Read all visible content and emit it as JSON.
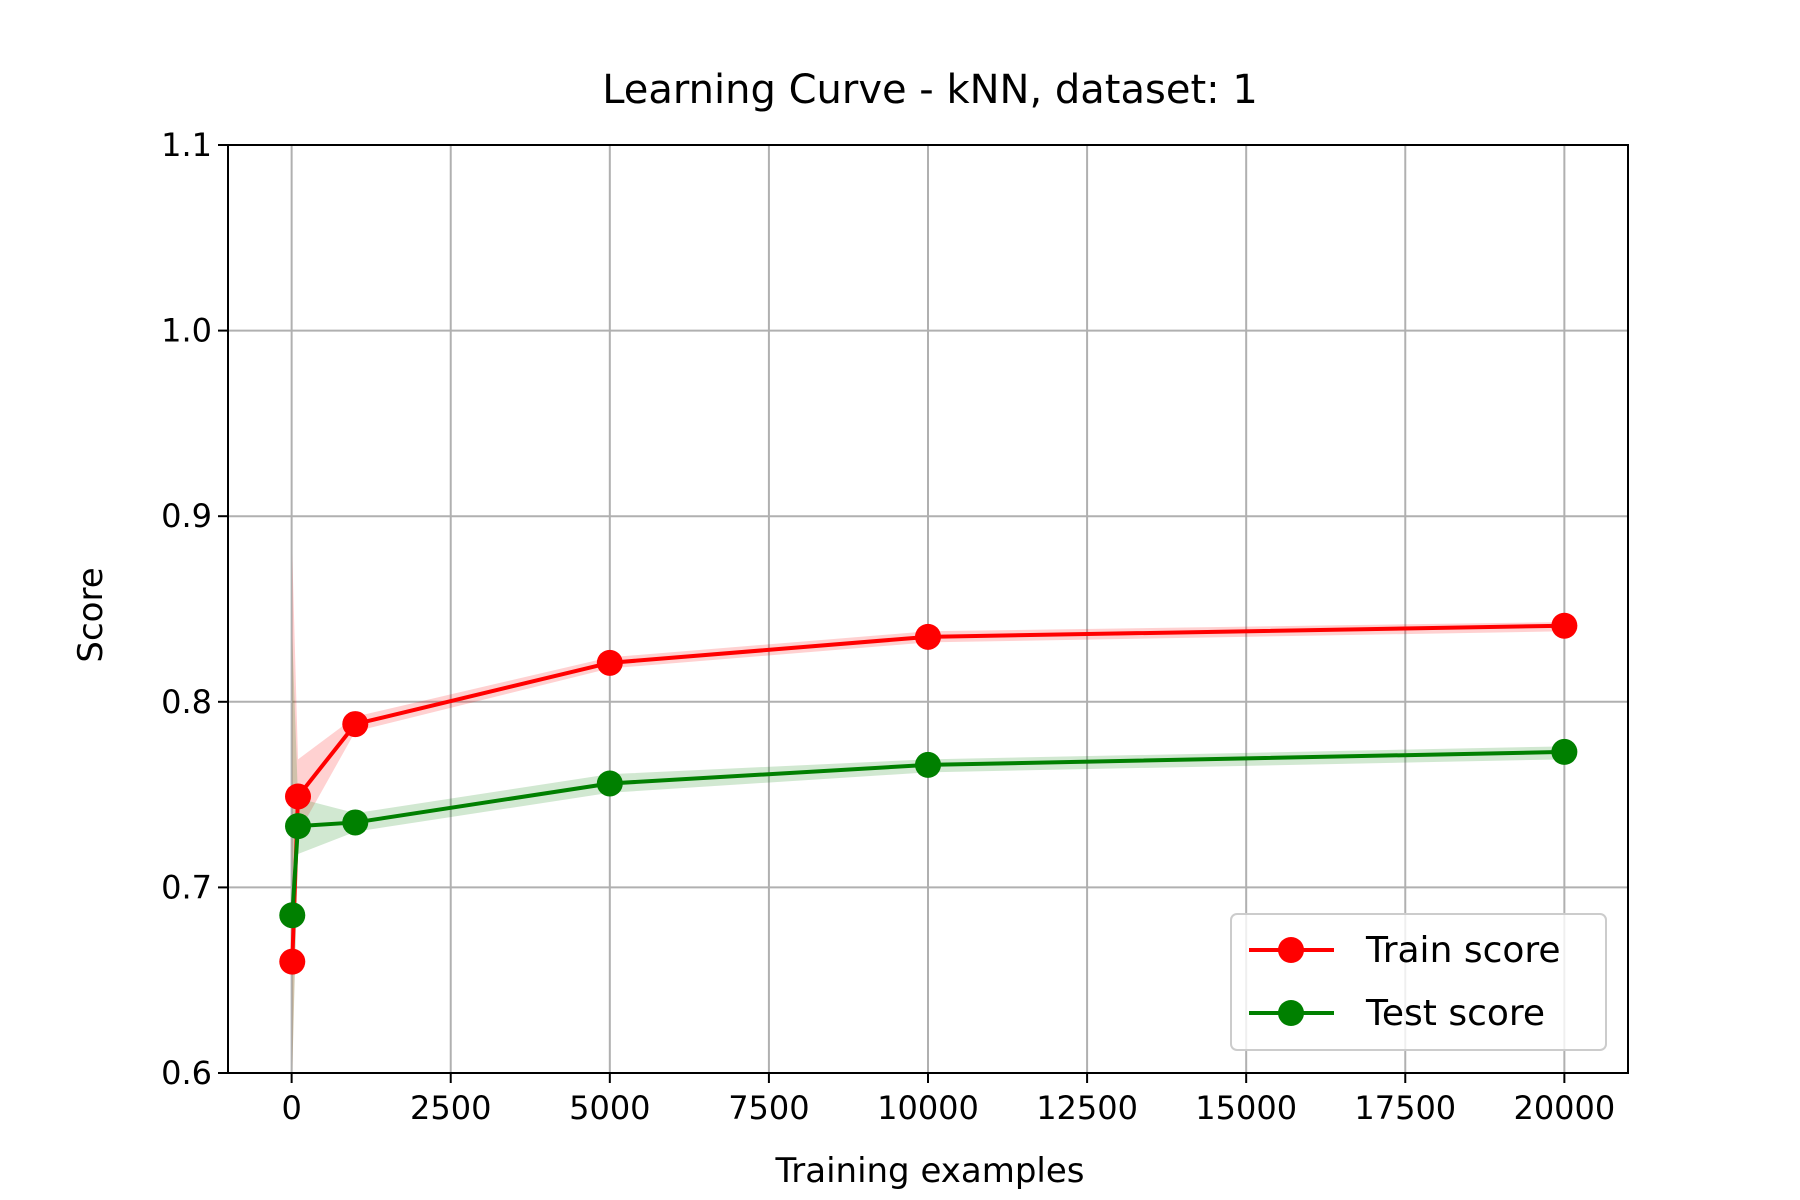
{
  "chart_data": {
    "type": "line",
    "title": "Learning Curve - kNN, dataset: 1",
    "xlabel": "Training examples",
    "ylabel": "Score",
    "xlim": [
      -1000,
      21000
    ],
    "ylim": [
      0.6,
      1.1
    ],
    "x_ticks": [
      0,
      2500,
      5000,
      7500,
      10000,
      12500,
      15000,
      17500,
      20000
    ],
    "y_ticks": [
      0.6,
      0.7,
      0.8,
      0.9,
      1.0,
      1.1
    ],
    "y_tick_labels": [
      "0.6",
      "0.7",
      "0.8",
      "0.9",
      "1.0",
      "1.1"
    ],
    "grid": true,
    "legend_position": "lower-right",
    "x": [
      10,
      100,
      1000,
      5000,
      10000,
      20000
    ],
    "series": [
      {
        "name": "Train score",
        "color": "#ff0000",
        "values": [
          0.66,
          0.749,
          0.788,
          0.821,
          0.835,
          0.841
        ],
        "band_lower": [
          0.44,
          0.729,
          0.784,
          0.818,
          0.832,
          0.838
        ],
        "band_upper": [
          0.88,
          0.769,
          0.792,
          0.824,
          0.838,
          0.843
        ]
      },
      {
        "name": "Test score",
        "color": "#008000",
        "values": [
          0.685,
          0.733,
          0.735,
          0.756,
          0.766,
          0.773
        ],
        "band_lower": [
          0.535,
          0.718,
          0.73,
          0.751,
          0.762,
          0.769
        ],
        "band_upper": [
          0.835,
          0.748,
          0.74,
          0.761,
          0.769,
          0.776
        ]
      }
    ]
  }
}
